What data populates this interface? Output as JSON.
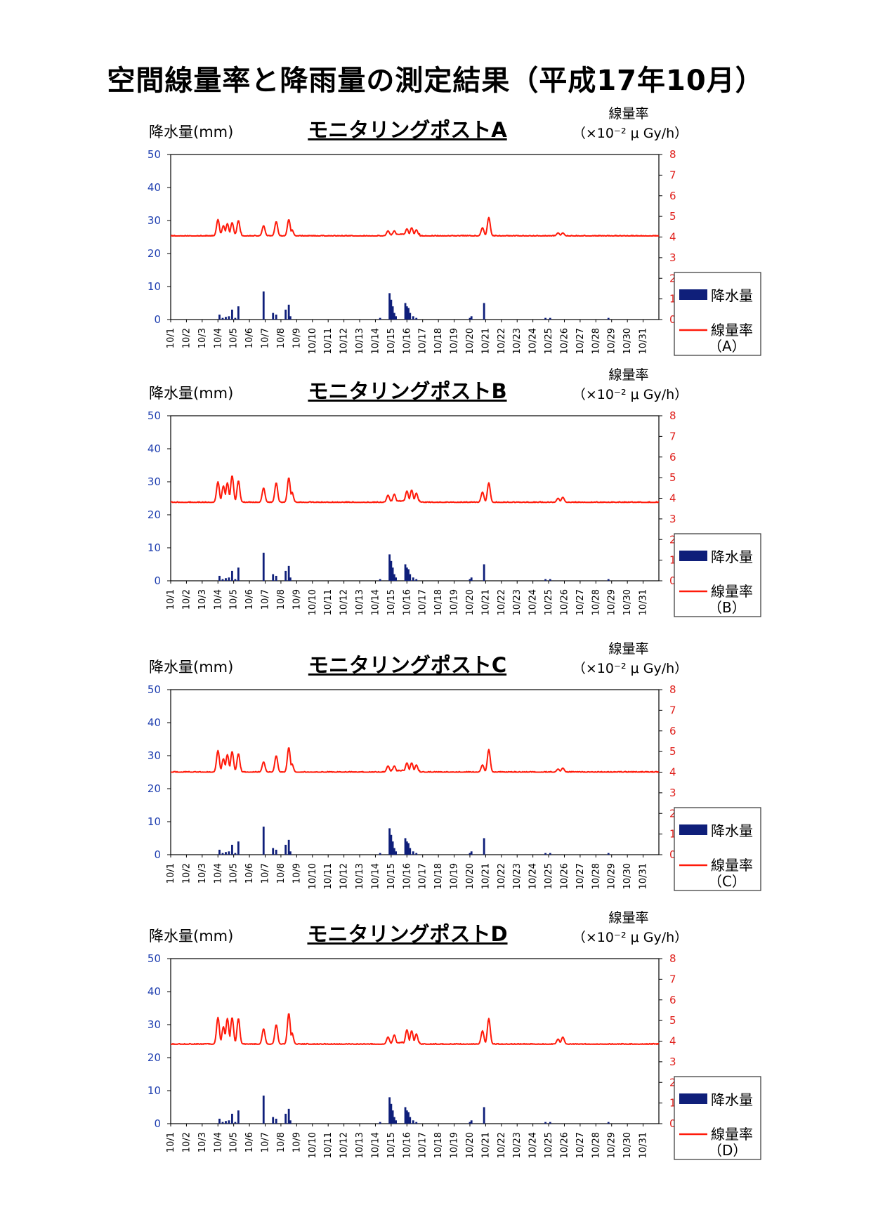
{
  "page": {
    "title": "空間線量率と降雨量の測定結果（平成17年10月）"
  },
  "colors": {
    "rain": "#0f1f7a",
    "dose": "#ff1a0a",
    "left_axis_ticks": "#1f3fb0",
    "right_axis_ticks": "#e0201c"
  },
  "chart_data": [
    {
      "type": "bar+line",
      "title": "モニタリングポストA",
      "left_axis": {
        "label": "降水量(mm)",
        "ylim": [
          0,
          50
        ],
        "ticks": [
          "0",
          "10",
          "20",
          "30",
          "40",
          "50"
        ]
      },
      "right_axis": {
        "label_line1": "線量率",
        "label_line2": "（×10⁻² μ Gy/h）",
        "ylim": [
          0,
          8
        ],
        "ticks": [
          "0",
          "1",
          "2",
          "3",
          "4",
          "5",
          "6",
          "7",
          "8"
        ]
      },
      "categories": [
        "10/1",
        "10/2",
        "10/3",
        "10/4",
        "10/5",
        "10/6",
        "10/7",
        "10/8",
        "10/9",
        "10/10",
        "10/11",
        "10/12",
        "10/13",
        "10/14",
        "10/15",
        "10/16",
        "10/17",
        "10/18",
        "10/19",
        "10/20",
        "10/21",
        "10/22",
        "10/23",
        "10/24",
        "10/25",
        "10/26",
        "10/27",
        "10/28",
        "10/29",
        "10/30",
        "10/31"
      ],
      "legend": {
        "position": "right",
        "rain": "降水量",
        "dose": "線量率",
        "dose_sub": "（A）"
      },
      "rain_mm": [
        [
          3.1,
          1.5
        ],
        [
          3.3,
          0.5
        ],
        [
          3.5,
          0.8
        ],
        [
          3.7,
          1
        ],
        [
          3.9,
          3
        ],
        [
          4.1,
          0.5
        ],
        [
          4.3,
          4
        ],
        [
          5.9,
          8.5
        ],
        [
          6.5,
          2
        ],
        [
          6.7,
          1.5
        ],
        [
          7.3,
          3
        ],
        [
          7.5,
          4.5
        ],
        [
          7.6,
          1
        ],
        [
          13.3,
          0.5
        ],
        [
          13.9,
          8
        ],
        [
          14.0,
          6
        ],
        [
          14.1,
          4
        ],
        [
          14.2,
          2
        ],
        [
          14.3,
          1
        ],
        [
          14.9,
          5
        ],
        [
          15.0,
          4
        ],
        [
          15.1,
          3.5
        ],
        [
          15.2,
          2
        ],
        [
          15.4,
          1
        ],
        [
          15.6,
          0.5
        ],
        [
          19.0,
          0.5
        ],
        [
          19.1,
          1
        ],
        [
          19.9,
          5
        ],
        [
          23.8,
          0.5
        ],
        [
          24.1,
          0.5
        ],
        [
          27.8,
          0.5
        ]
      ],
      "dose_baseline": 4.05,
      "dose_peaks": [
        [
          3.0,
          4.85
        ],
        [
          3.35,
          4.55
        ],
        [
          3.6,
          4.65
        ],
        [
          3.9,
          4.7
        ],
        [
          4.3,
          4.8
        ],
        [
          5.9,
          4.55
        ],
        [
          6.7,
          4.75
        ],
        [
          7.5,
          4.85
        ],
        [
          7.7,
          4.35
        ],
        [
          13.8,
          4.3
        ],
        [
          14.2,
          4.3
        ],
        [
          15.0,
          4.4
        ],
        [
          15.3,
          4.45
        ],
        [
          15.6,
          4.35
        ],
        [
          19.8,
          4.45
        ],
        [
          20.2,
          4.95
        ],
        [
          24.6,
          4.2
        ],
        [
          24.9,
          4.2
        ]
      ]
    },
    {
      "type": "bar+line",
      "title": "モニタリングポストB",
      "left_axis": {
        "label": "降水量(mm)",
        "ylim": [
          0,
          50
        ],
        "ticks": [
          "0",
          "10",
          "20",
          "30",
          "40",
          "50"
        ]
      },
      "right_axis": {
        "label_line1": "線量率",
        "label_line2": "（×10⁻² μ Gy/h）",
        "ylim": [
          0,
          8
        ],
        "ticks": [
          "0",
          "1",
          "2",
          "3",
          "4",
          "5",
          "6",
          "7",
          "8"
        ]
      },
      "categories": [
        "10/1",
        "10/2",
        "10/3",
        "10/4",
        "10/5",
        "10/6",
        "10/7",
        "10/8",
        "10/9",
        "10/10",
        "10/11",
        "10/12",
        "10/13",
        "10/14",
        "10/15",
        "10/16",
        "10/17",
        "10/18",
        "10/19",
        "10/20",
        "10/21",
        "10/22",
        "10/23",
        "10/24",
        "10/25",
        "10/26",
        "10/27",
        "10/28",
        "10/29",
        "10/30",
        "10/31"
      ],
      "legend": {
        "position": "right",
        "rain": "降水量",
        "dose": "線量率",
        "dose_sub": "（B）"
      },
      "rain_mm": [
        [
          3.1,
          1.5
        ],
        [
          3.3,
          0.5
        ],
        [
          3.5,
          0.8
        ],
        [
          3.7,
          1
        ],
        [
          3.9,
          3
        ],
        [
          4.1,
          0.5
        ],
        [
          4.3,
          4
        ],
        [
          5.9,
          8.5
        ],
        [
          6.5,
          2
        ],
        [
          6.7,
          1.5
        ],
        [
          7.3,
          3
        ],
        [
          7.5,
          4.5
        ],
        [
          7.6,
          1
        ],
        [
          13.3,
          0.5
        ],
        [
          13.9,
          8
        ],
        [
          14.0,
          6
        ],
        [
          14.1,
          4
        ],
        [
          14.2,
          2
        ],
        [
          14.3,
          1
        ],
        [
          14.9,
          5
        ],
        [
          15.0,
          4
        ],
        [
          15.1,
          3.5
        ],
        [
          15.2,
          2
        ],
        [
          15.4,
          1
        ],
        [
          15.6,
          0.5
        ],
        [
          19.0,
          0.5
        ],
        [
          19.1,
          1
        ],
        [
          19.9,
          5
        ],
        [
          23.8,
          0.5
        ],
        [
          24.1,
          0.5
        ],
        [
          27.8,
          0.5
        ]
      ],
      "dose_baseline": 3.8,
      "dose_peaks": [
        [
          3.0,
          4.8
        ],
        [
          3.35,
          4.6
        ],
        [
          3.6,
          4.75
        ],
        [
          3.9,
          5.1
        ],
        [
          4.3,
          4.85
        ],
        [
          5.9,
          4.5
        ],
        [
          6.7,
          4.75
        ],
        [
          7.5,
          5.0
        ],
        [
          7.7,
          4.3
        ],
        [
          13.8,
          4.15
        ],
        [
          14.2,
          4.2
        ],
        [
          15.0,
          4.35
        ],
        [
          15.3,
          4.4
        ],
        [
          15.6,
          4.25
        ],
        [
          19.8,
          4.3
        ],
        [
          20.2,
          4.75
        ],
        [
          24.6,
          4.0
        ],
        [
          24.9,
          4.05
        ]
      ]
    },
    {
      "type": "bar+line",
      "title": "モニタリングポストC",
      "left_axis": {
        "label": "降水量(mm)",
        "ylim": [
          0,
          50
        ],
        "ticks": [
          "0",
          "10",
          "20",
          "30",
          "40",
          "50"
        ]
      },
      "right_axis": {
        "label_line1": "線量率",
        "label_line2": "（×10⁻² μ Gy/h）",
        "ylim": [
          0,
          8
        ],
        "ticks": [
          "0",
          "1",
          "2",
          "3",
          "4",
          "5",
          "6",
          "7",
          "8"
        ]
      },
      "categories": [
        "10/1",
        "10/2",
        "10/3",
        "10/4",
        "10/5",
        "10/6",
        "10/7",
        "10/8",
        "10/9",
        "10/10",
        "10/11",
        "10/12",
        "10/13",
        "10/14",
        "10/15",
        "10/16",
        "10/17",
        "10/18",
        "10/19",
        "10/20",
        "10/21",
        "10/22",
        "10/23",
        "10/24",
        "10/25",
        "10/26",
        "10/27",
        "10/28",
        "10/29",
        "10/30",
        "10/31"
      ],
      "legend": {
        "position": "right",
        "rain": "降水量",
        "dose": "線量率",
        "dose_sub": "（C）"
      },
      "rain_mm": [
        [
          3.1,
          1.5
        ],
        [
          3.3,
          0.5
        ],
        [
          3.5,
          0.8
        ],
        [
          3.7,
          1
        ],
        [
          3.9,
          3
        ],
        [
          4.1,
          0.5
        ],
        [
          4.3,
          4
        ],
        [
          5.9,
          8.5
        ],
        [
          6.5,
          2
        ],
        [
          6.7,
          1.5
        ],
        [
          7.3,
          3
        ],
        [
          7.5,
          4.5
        ],
        [
          7.6,
          1
        ],
        [
          13.3,
          0.5
        ],
        [
          13.9,
          8
        ],
        [
          14.0,
          6
        ],
        [
          14.1,
          4
        ],
        [
          14.2,
          2
        ],
        [
          14.3,
          1
        ],
        [
          14.9,
          5
        ],
        [
          15.0,
          4
        ],
        [
          15.1,
          3.5
        ],
        [
          15.2,
          2
        ],
        [
          15.4,
          1
        ],
        [
          15.6,
          0.5
        ],
        [
          19.0,
          0.5
        ],
        [
          19.1,
          1
        ],
        [
          19.9,
          5
        ],
        [
          23.8,
          0.5
        ],
        [
          24.1,
          0.5
        ],
        [
          27.8,
          0.5
        ]
      ],
      "dose_baseline": 4.0,
      "dose_peaks": [
        [
          3.0,
          5.05
        ],
        [
          3.35,
          4.65
        ],
        [
          3.6,
          4.85
        ],
        [
          3.9,
          5.0
        ],
        [
          4.3,
          4.9
        ],
        [
          5.9,
          4.5
        ],
        [
          6.7,
          4.8
        ],
        [
          7.5,
          5.2
        ],
        [
          7.7,
          4.4
        ],
        [
          13.8,
          4.3
        ],
        [
          14.2,
          4.3
        ],
        [
          15.0,
          4.45
        ],
        [
          15.3,
          4.45
        ],
        [
          15.6,
          4.35
        ],
        [
          19.8,
          4.35
        ],
        [
          20.2,
          5.1
        ],
        [
          24.6,
          4.15
        ],
        [
          24.9,
          4.2
        ]
      ]
    },
    {
      "type": "bar+line",
      "title": "モニタリングポストD",
      "left_axis": {
        "label": "降水量(mm)",
        "ylim": [
          0,
          50
        ],
        "ticks": [
          "0",
          "10",
          "20",
          "30",
          "40",
          "50"
        ]
      },
      "right_axis": {
        "label_line1": "線量率",
        "label_line2": "（×10⁻² μ Gy/h）",
        "ylim": [
          0,
          8
        ],
        "ticks": [
          "0",
          "1",
          "2",
          "3",
          "4",
          "5",
          "6",
          "7",
          "8"
        ]
      },
      "categories": [
        "10/1",
        "10/2",
        "10/3",
        "10/4",
        "10/5",
        "10/6",
        "10/7",
        "10/8",
        "10/9",
        "10/10",
        "10/11",
        "10/12",
        "10/13",
        "10/14",
        "10/15",
        "10/16",
        "10/17",
        "10/18",
        "10/19",
        "10/20",
        "10/21",
        "10/22",
        "10/23",
        "10/24",
        "10/25",
        "10/26",
        "10/27",
        "10/28",
        "10/29",
        "10/30",
        "10/31"
      ],
      "legend": {
        "position": "right",
        "rain": "降水量",
        "dose": "線量率",
        "dose_sub": "（D）"
      },
      "rain_mm": [
        [
          3.1,
          1.5
        ],
        [
          3.3,
          0.5
        ],
        [
          3.5,
          0.8
        ],
        [
          3.7,
          1
        ],
        [
          3.9,
          3
        ],
        [
          4.1,
          0.5
        ],
        [
          4.3,
          4
        ],
        [
          5.9,
          8.5
        ],
        [
          6.5,
          2
        ],
        [
          6.7,
          1.5
        ],
        [
          7.3,
          3
        ],
        [
          7.5,
          4.5
        ],
        [
          7.6,
          1
        ],
        [
          13.3,
          0.5
        ],
        [
          13.9,
          8
        ],
        [
          14.0,
          6
        ],
        [
          14.1,
          4
        ],
        [
          14.2,
          2
        ],
        [
          14.3,
          1
        ],
        [
          14.9,
          5
        ],
        [
          15.0,
          4
        ],
        [
          15.1,
          3.5
        ],
        [
          15.2,
          2
        ],
        [
          15.4,
          1
        ],
        [
          15.6,
          0.5
        ],
        [
          19.0,
          0.5
        ],
        [
          19.1,
          1
        ],
        [
          19.9,
          5
        ],
        [
          23.8,
          0.5
        ],
        [
          24.1,
          0.5
        ],
        [
          27.8,
          0.5
        ]
      ],
      "dose_baseline": 3.85,
      "dose_peaks": [
        [
          3.0,
          5.15
        ],
        [
          3.35,
          4.7
        ],
        [
          3.6,
          5.1
        ],
        [
          3.9,
          5.15
        ],
        [
          4.3,
          5.1
        ],
        [
          5.9,
          4.6
        ],
        [
          6.7,
          4.8
        ],
        [
          7.5,
          5.35
        ],
        [
          7.7,
          4.4
        ],
        [
          13.8,
          4.2
        ],
        [
          14.2,
          4.3
        ],
        [
          15.0,
          4.55
        ],
        [
          15.3,
          4.5
        ],
        [
          15.6,
          4.35
        ],
        [
          19.8,
          4.5
        ],
        [
          20.2,
          5.1
        ],
        [
          24.6,
          4.1
        ],
        [
          24.9,
          4.2
        ]
      ]
    }
  ]
}
